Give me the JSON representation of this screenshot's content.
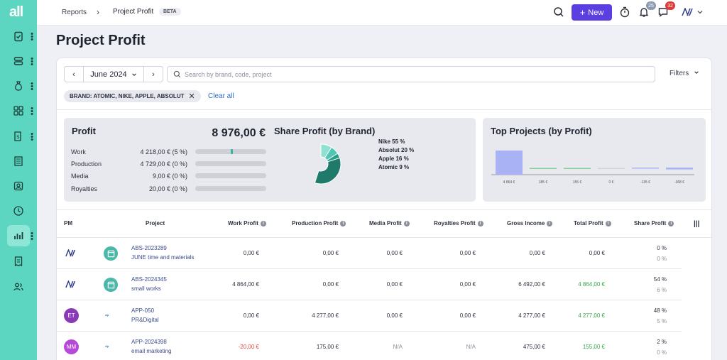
{
  "app": {
    "logo": "all"
  },
  "breadcrumb": {
    "parent": "Reports",
    "current": "Project Profit",
    "badge": "BETA"
  },
  "topbar": {
    "new_label": "New",
    "notifications_count": "25",
    "messages_count": "32"
  },
  "page_title": "Project Profit",
  "toolbar": {
    "month": "June 2024",
    "search_placeholder": "Search by brand, code, project",
    "filters_label": "Filters",
    "brand_chip": "BRAND: ATOMIC, NIKE, APPLE, ABSOLUT",
    "clear_all": "Clear all"
  },
  "profit_panel": {
    "title": "Profit",
    "total": "8 976,00 €",
    "rows": [
      {
        "label": "Work",
        "value": "4 218,00 € (5 %)",
        "share": 0.05
      },
      {
        "label": "Production",
        "value": "4 729,00 € (0 %)",
        "share": 0
      },
      {
        "label": "Media",
        "value": "9,00 € (0 %)",
        "share": 0
      },
      {
        "label": "Royalties",
        "value": "20,00 € (0 %)",
        "share": 0
      }
    ]
  },
  "share_panel": {
    "title": "Share Profit (by Brand)",
    "legend": [
      "Nike 55 %",
      "Absolut 20 %",
      "Apple 16 %",
      "Atomic 9 %"
    ],
    "values": [
      55,
      20,
      16,
      9
    ],
    "colors": [
      "#1f7a6b",
      "#2a9d8a",
      "#4fc7b3",
      "#8fe0d2"
    ]
  },
  "top_panel": {
    "title": "Top Projects (by Profit)",
    "ticks": [
      "4 864 €",
      "185 €",
      "155 €",
      "0 €",
      "-135 €",
      "-368 €"
    ],
    "values": [
      4864,
      185,
      155,
      0,
      -135,
      -368
    ]
  },
  "table": {
    "headers": [
      "PM",
      "Project",
      "Work Profit",
      "Production Profit",
      "Media Profit",
      "Royalties Profit",
      "Gross Income",
      "Total Profit",
      "Share Profit"
    ],
    "rows": [
      {
        "pm": "",
        "code": "ABS-2023289",
        "name": "JUNE time and materials",
        "work": "0,00 €",
        "production": "0,00 €",
        "media": "0,00 €",
        "royalties": "0,00 €",
        "gross": "0,00 €",
        "total": "0,00 €",
        "share1": "0 %",
        "share2": "0 %"
      },
      {
        "pm": "",
        "code": "ABS-2024345",
        "name": "small works",
        "work": "4 864,00 €",
        "production": "0,00 €",
        "media": "0,00 €",
        "royalties": "0,00 €",
        "gross": "6 492,00 €",
        "total": "4 864,00 €",
        "share1": "54 %",
        "share2": "6 %"
      },
      {
        "pm": "ET",
        "code": "APP-050",
        "name": "PR&Digital",
        "work": "0,00 €",
        "production": "4 277,00 €",
        "media": "0,00 €",
        "royalties": "0,00 €",
        "gross": "4 277,00 €",
        "total": "4 277,00 €",
        "share1": "48 %",
        "share2": "5 %"
      },
      {
        "pm": "MM",
        "code": "APP-2024398",
        "name": "email marketing",
        "work": "-20,00 €",
        "production": "175,00 €",
        "media": "N/A",
        "royalties": "N/A",
        "gross": "475,00 €",
        "total": "155,00 €",
        "share1": "2 %",
        "share2": "0 %"
      }
    ]
  }
}
